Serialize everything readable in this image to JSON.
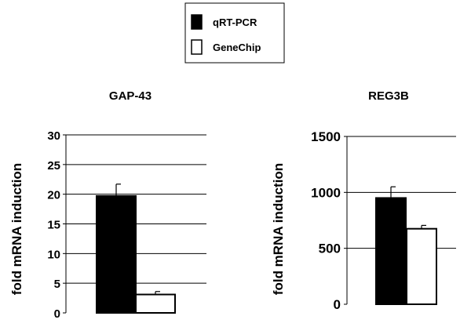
{
  "legend": {
    "items": [
      {
        "label": "qRT-PCR",
        "fill": "#000000"
      },
      {
        "label": "GeneChip",
        "fill": "#ffffff"
      }
    ]
  },
  "chart_data": [
    {
      "type": "bar",
      "title": "GAP-43",
      "ylabel": "fold mRNA induction",
      "xlabel": "",
      "ylim": [
        0,
        30
      ],
      "yticks": [
        0,
        5,
        10,
        15,
        20,
        25,
        30
      ],
      "grid": true,
      "series": [
        {
          "name": "qRT-PCR",
          "values": [
            19.7
          ],
          "error": [
            2.0
          ],
          "color": "#000000"
        },
        {
          "name": "GeneChip",
          "values": [
            3.1
          ],
          "error": [
            0.5
          ],
          "color": "#ffffff"
        }
      ]
    },
    {
      "type": "bar",
      "title": "REG3B",
      "ylabel": "fold mRNA induction",
      "xlabel": "",
      "ylim": [
        0,
        1500
      ],
      "yticks": [
        0,
        500,
        1000,
        1500
      ],
      "grid": true,
      "series": [
        {
          "name": "qRT-PCR",
          "values": [
            950
          ],
          "error": [
            100
          ],
          "color": "#000000"
        },
        {
          "name": "GeneChip",
          "values": [
            675
          ],
          "error": [
            30
          ],
          "color": "#ffffff"
        }
      ]
    }
  ]
}
